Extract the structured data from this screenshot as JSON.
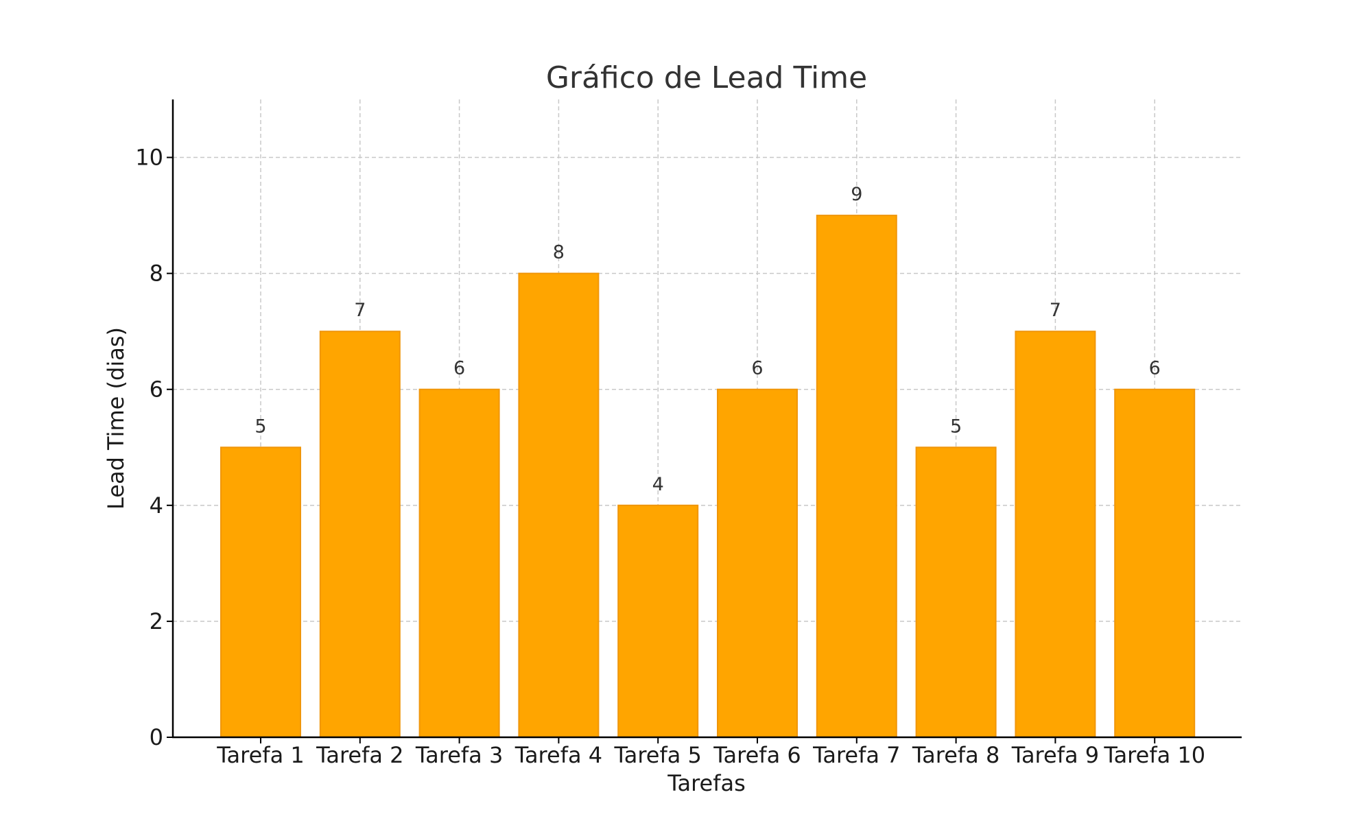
{
  "chart_data": {
    "type": "bar",
    "title": "Gráfico de Lead Time",
    "xlabel": "Tarefas",
    "ylabel": "Lead Time (dias)",
    "categories": [
      "Tarefa 1",
      "Tarefa 2",
      "Tarefa 3",
      "Tarefa 4",
      "Tarefa 5",
      "Tarefa 6",
      "Tarefa 7",
      "Tarefa 8",
      "Tarefa 9",
      "Tarefa 10"
    ],
    "values": [
      5,
      7,
      6,
      8,
      4,
      6,
      9,
      5,
      7,
      6
    ],
    "data_labels": [
      "5",
      "7",
      "6",
      "8",
      "4",
      "6",
      "9",
      "5",
      "7",
      "6"
    ],
    "ylim": [
      0,
      11
    ],
    "yticks": [
      0,
      2,
      4,
      6,
      8,
      10
    ],
    "ytick_labels": [
      "0",
      "2",
      "4",
      "6",
      "8",
      "10"
    ],
    "grid": true,
    "bar_color": "#FFA500",
    "bar_edge_color": "#F0960A"
  }
}
